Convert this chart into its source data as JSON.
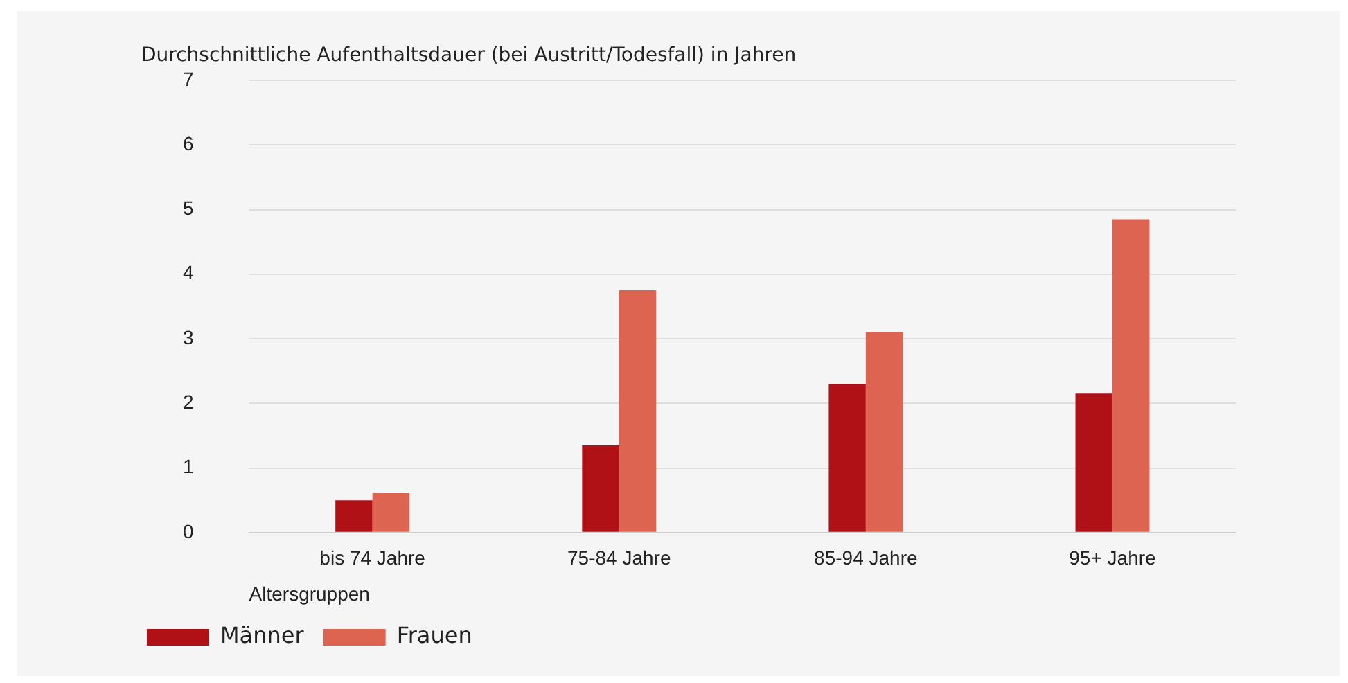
{
  "chart_data": {
    "type": "bar",
    "ylabel": "Durchschnittliche Aufenthaltsdauer (bei Austritt/Todesfall) in Jahren",
    "xlabel": "Altersgruppen",
    "categories": [
      "bis 74 Jahre",
      "75-84 Jahre",
      "85-94 Jahre",
      "95+ Jahre"
    ],
    "series": [
      {
        "name": "Männer",
        "color": "#b01117",
        "values": [
          0.5,
          1.35,
          2.3,
          2.15
        ]
      },
      {
        "name": "Frauen",
        "color": "#dc6450",
        "values": [
          0.62,
          3.75,
          3.1,
          4.85
        ]
      }
    ],
    "ylim": [
      0,
      7
    ],
    "yticks": [
      0,
      1,
      2,
      3,
      4,
      5,
      6,
      7
    ],
    "grid": "y",
    "legend": "bottom left"
  }
}
